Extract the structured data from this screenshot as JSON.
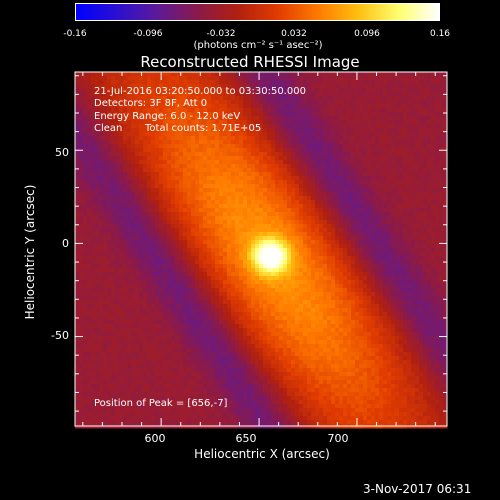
{
  "chart_data": {
    "type": "heatmap",
    "title": "Reconstructed RHESSI Image",
    "xlabel": "Heliocentric X (arcsec)",
    "ylabel": "Heliocentric Y (arcsec)",
    "xlim": [
      556,
      746
    ],
    "ylim": [
      -98,
      92
    ],
    "x_ticks": [
      "600",
      "650",
      "700"
    ],
    "y_ticks": [
      "50",
      "0",
      "-50"
    ],
    "colorbar": {
      "min": -0.16,
      "max": 0.16,
      "ticks": [
        "-0.16",
        "-0.096",
        "-0.032",
        "0.032",
        "0.096",
        "0.16"
      ],
      "units_label": "(photons cm⁻² s⁻¹ asec⁻²)",
      "colormap": [
        "#0000ff",
        "#2a10d0",
        "#5c1a9a",
        "#8a1a4a",
        "#b02010",
        "#e03c00",
        "#ff7a00",
        "#ffbf10",
        "#ffff70",
        "#ffffff"
      ]
    },
    "source": {
      "peak": [
        656,
        -7
      ],
      "peak_value": 0.16,
      "background_value": -0.04,
      "ridge_angle_deg": -58
    },
    "annotations": {
      "time_range": "21-Jul-2016 03:20:50.000 to 03:30:50.000",
      "detectors": "Detectors: 3F 8F, Att 0",
      "energy_range": "Energy Range: 6.0 - 12.0 keV",
      "clean_label": "Clean",
      "total_counts": "Total counts: 1.71E+05",
      "peak_position": "Position of Peak = [656,-7]"
    }
  },
  "footer": {
    "timestamp": "3-Nov-2017 06:31"
  }
}
